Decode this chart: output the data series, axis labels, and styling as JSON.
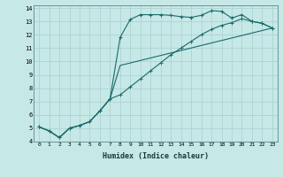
{
  "xlabel": "Humidex (Indice chaleur)",
  "bg_color": "#c6e8e6",
  "grid_color": "#a8d0ce",
  "line_color": "#1a6b6b",
  "xlim": [
    -0.5,
    23.5
  ],
  "ylim": [
    4,
    14.2
  ],
  "xticks": [
    0,
    1,
    2,
    3,
    4,
    5,
    6,
    7,
    8,
    9,
    10,
    11,
    12,
    13,
    14,
    15,
    16,
    17,
    18,
    19,
    20,
    21,
    22,
    23
  ],
  "yticks": [
    4,
    5,
    6,
    7,
    8,
    9,
    10,
    11,
    12,
    13,
    14
  ],
  "line1_x": [
    0,
    1,
    2,
    3,
    4,
    5,
    6,
    7,
    8,
    9,
    10,
    11,
    12,
    13,
    14,
    15,
    16,
    17,
    18,
    19,
    20,
    21,
    22,
    23
  ],
  "line1_y": [
    5.1,
    4.8,
    4.3,
    5.0,
    5.2,
    5.5,
    6.3,
    7.2,
    11.8,
    13.15,
    13.5,
    13.5,
    13.5,
    13.45,
    13.35,
    13.3,
    13.45,
    13.8,
    13.75,
    13.25,
    13.5,
    13.0,
    12.85,
    12.5
  ],
  "line2_x": [
    0,
    1,
    2,
    3,
    4,
    5,
    6,
    7,
    8,
    9,
    10,
    11,
    12,
    13,
    14,
    15,
    16,
    17,
    18,
    19,
    20,
    21,
    22,
    23
  ],
  "line2_y": [
    5.1,
    4.8,
    4.3,
    5.0,
    5.2,
    5.5,
    6.3,
    7.2,
    7.5,
    8.1,
    8.7,
    9.3,
    9.9,
    10.5,
    11.0,
    11.5,
    12.0,
    12.4,
    12.7,
    12.9,
    13.2,
    13.0,
    12.85,
    12.5
  ],
  "line3_x": [
    0,
    1,
    2,
    3,
    4,
    5,
    6,
    7,
    8,
    23
  ],
  "line3_y": [
    5.1,
    4.8,
    4.3,
    5.0,
    5.2,
    5.5,
    6.3,
    7.2,
    9.7,
    12.5
  ]
}
